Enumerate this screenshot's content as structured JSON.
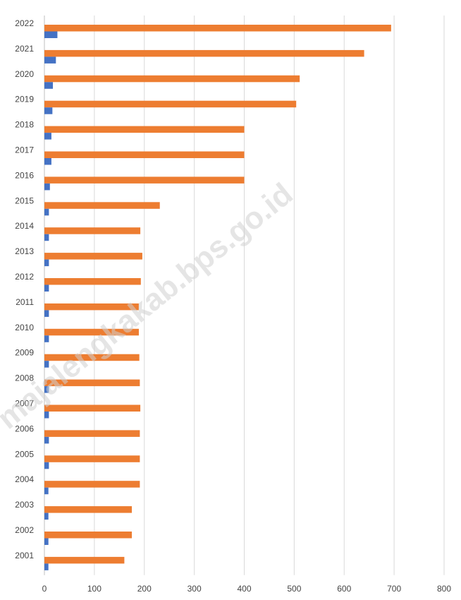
{
  "watermark": "majalengkakab.bps.go.id",
  "colors": {
    "series_orange": "#ED7D31",
    "series_blue": "#4472C4",
    "grid": "#d9d9d9",
    "axis_text": "#444444"
  },
  "chart_data": {
    "type": "bar",
    "orientation": "horizontal",
    "categories": [
      "2001",
      "2002",
      "2003",
      "2004",
      "2005",
      "2006",
      "2007",
      "2008",
      "2009",
      "2010",
      "2011",
      "2012",
      "2013",
      "2014",
      "2015",
      "2016",
      "2017",
      "2018",
      "2019",
      "2020",
      "2021",
      "2022"
    ],
    "series": [
      {
        "color": "#ED7D31",
        "values": [
          160,
          175,
          175,
          191,
          191,
          191,
          192,
          191,
          190,
          189,
          189,
          193,
          196,
          192,
          231,
          400,
          400,
          400,
          504,
          511,
          640,
          694
        ]
      },
      {
        "color": "#4472C4",
        "values": [
          8,
          8,
          8,
          8,
          9,
          9,
          9,
          9,
          9,
          9,
          9,
          9,
          9,
          9,
          9,
          11,
          14,
          14,
          16,
          17,
          23,
          26
        ]
      }
    ],
    "xlim": [
      0,
      800
    ],
    "xticks": [
      0,
      100,
      200,
      300,
      400,
      500,
      600,
      700,
      800
    ],
    "grid": true,
    "legend": "none"
  }
}
